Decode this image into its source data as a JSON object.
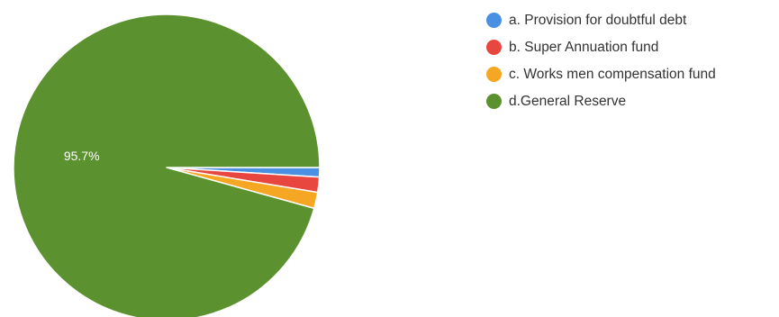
{
  "chart_data": {
    "type": "pie",
    "categories": [
      "a. Provision for doubtful debt",
      "b. Super Annuation fund",
      "c. Works men compensation fund",
      "d.General Reserve"
    ],
    "values": [
      1.0,
      1.6,
      1.7,
      95.7
    ],
    "value_unit": "%",
    "colors": [
      "#4a90e2",
      "#e8473f",
      "#f5a623",
      "#5b922f"
    ],
    "data_labels": [
      "",
      "",
      "",
      "95.7%"
    ],
    "legend_position": "right"
  }
}
